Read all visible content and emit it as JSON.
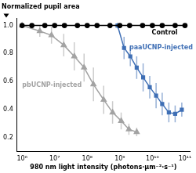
{
  "chart_data": {
    "type": "line",
    "ylabel": "Normalized pupil area",
    "xlabel": "980 nm light intensity (photons·μm⁻²·s⁻¹)",
    "log": "x",
    "grid": false,
    "xlim": [
      700000,
      140000000000
    ],
    "xticks": [
      {
        "value": 1000000,
        "label": "10⁶"
      },
      {
        "value": 10000000,
        "label": "10⁷"
      },
      {
        "value": 100000000,
        "label": "10⁸"
      },
      {
        "value": 1000000000,
        "label": "10⁹"
      },
      {
        "value": 10000000000,
        "label": "10¹⁰"
      },
      {
        "value": 100000000000,
        "label": "10¹¹"
      }
    ],
    "ylim": [
      0.1,
      1.05
    ],
    "yticks": [
      0.2,
      0.4,
      0.6,
      0.8,
      {
        "value": 1,
        "label": "1.0"
      }
    ],
    "series": [
      {
        "name": "Control",
        "color": "#000000",
        "marker": "circle",
        "x": [
          1000000,
          2000000,
          5000000,
          10000000,
          20000000,
          50000000,
          100000000,
          200000000,
          500000000,
          1000000000,
          2000000000,
          5000000000,
          10000000000,
          20000000000,
          50000000000,
          100000000000
        ],
        "values": [
          1,
          1,
          1,
          1,
          1,
          1,
          1,
          1,
          1,
          1,
          1,
          1,
          1,
          1,
          1,
          1
        ]
      },
      {
        "name": "paaUCNP-injected",
        "color": "#3f6fb5",
        "marker": "square",
        "x": [
          850000000,
          1350000000,
          2100000000,
          3300000000,
          5200000000,
          8300000000,
          13000000000,
          20000000000,
          32000000000,
          50000000000,
          80000000000
        ],
        "values": [
          1,
          0.84,
          0.78,
          0.7,
          0.63,
          0.56,
          0.5,
          0.44,
          0.38,
          0.37,
          0.4
        ],
        "errors": [
          0.02,
          0.08,
          0.07,
          0.08,
          0.1,
          0.08,
          0.09,
          0.08,
          0.07,
          0.06,
          0.05
        ]
      },
      {
        "name": "pbUCNP-injected",
        "color": "#a3a3a3",
        "marker": "triangle",
        "x": [
          1000000,
          3500000,
          8000000,
          19000000,
          40000000,
          80000000,
          155000000,
          320000000,
          600000000,
          1100000000,
          1900000000,
          3300000000
        ],
        "values": [
          1,
          0.96,
          0.93,
          0.86,
          0.78,
          0.7,
          0.58,
          0.47,
          0.38,
          0.32,
          0.26,
          0.24
        ],
        "errors": [
          0.01,
          0.04,
          0.06,
          0.08,
          0.1,
          0.1,
          0.12,
          0.1,
          0.08,
          0.06,
          0.04,
          0.03
        ]
      }
    ]
  }
}
